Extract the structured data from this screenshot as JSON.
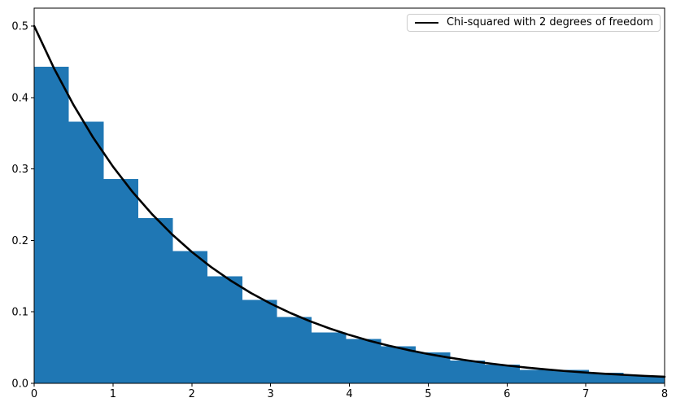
{
  "chart_data": {
    "type": "bar",
    "subtype": "density-histogram-with-pdf-curve",
    "title": "",
    "xlabel": "",
    "ylabel": "",
    "xlim": [
      0,
      8
    ],
    "ylim": [
      0,
      0.525
    ],
    "grid": false,
    "x_ticks": [
      0,
      1,
      2,
      3,
      4,
      5,
      6,
      7,
      8
    ],
    "x_tick_labels": [
      "0",
      "1",
      "2",
      "3",
      "4",
      "5",
      "6",
      "7",
      "8"
    ],
    "y_ticks": [
      0.0,
      0.1,
      0.2,
      0.3,
      0.4,
      0.5
    ],
    "y_tick_labels": [
      "0.0",
      "0.1",
      "0.2",
      "0.3",
      "0.4",
      "0.5"
    ],
    "histogram": {
      "name": "sample-density-histogram",
      "color": "#1f77b4",
      "bin_edges": [
        0,
        0.44,
        0.88,
        1.32,
        1.76,
        2.2,
        2.64,
        3.08,
        3.52,
        3.96,
        4.4,
        4.84,
        5.28,
        5.72,
        6.16,
        6.6,
        7.04,
        7.48,
        7.92,
        8.36
      ],
      "densities": [
        0.443,
        0.366,
        0.286,
        0.231,
        0.185,
        0.15,
        0.117,
        0.093,
        0.071,
        0.062,
        0.052,
        0.043,
        0.032,
        0.026,
        0.019,
        0.019,
        0.015,
        0.011,
        0.009
      ]
    },
    "curve": {
      "name": "chi-squared-pdf",
      "formula": "0.5 * exp(-x/2)",
      "color": "#000000",
      "line_width": 2.6,
      "points": [
        [
          0,
          0.5
        ],
        [
          0.25,
          0.4412
        ],
        [
          0.5,
          0.3894
        ],
        [
          0.75,
          0.3436
        ],
        [
          1,
          0.3033
        ],
        [
          1.25,
          0.2676
        ],
        [
          1.5,
          0.2362
        ],
        [
          1.75,
          0.2084
        ],
        [
          2,
          0.1839
        ],
        [
          2.25,
          0.1623
        ],
        [
          2.5,
          0.1433
        ],
        [
          2.75,
          0.1264
        ],
        [
          3,
          0.1116
        ],
        [
          3.25,
          0.0985
        ],
        [
          3.5,
          0.0869
        ],
        [
          3.75,
          0.0767
        ],
        [
          4,
          0.0677
        ],
        [
          4.25,
          0.0597
        ],
        [
          4.5,
          0.0527
        ],
        [
          4.75,
          0.0465
        ],
        [
          5,
          0.041
        ],
        [
          5.25,
          0.0362
        ],
        [
          5.5,
          0.032
        ],
        [
          5.75,
          0.0282
        ],
        [
          6,
          0.0249
        ],
        [
          6.25,
          0.022
        ],
        [
          6.5,
          0.0194
        ],
        [
          6.75,
          0.0171
        ],
        [
          7,
          0.0151
        ],
        [
          7.25,
          0.0133
        ],
        [
          7.5,
          0.0118
        ],
        [
          7.75,
          0.0104
        ],
        [
          8,
          0.0092
        ]
      ]
    },
    "legend": {
      "position": "upper right",
      "entries": [
        {
          "label": "Chi-squared with 2 degrees of freedom",
          "line_color": "#000000"
        }
      ]
    }
  }
}
